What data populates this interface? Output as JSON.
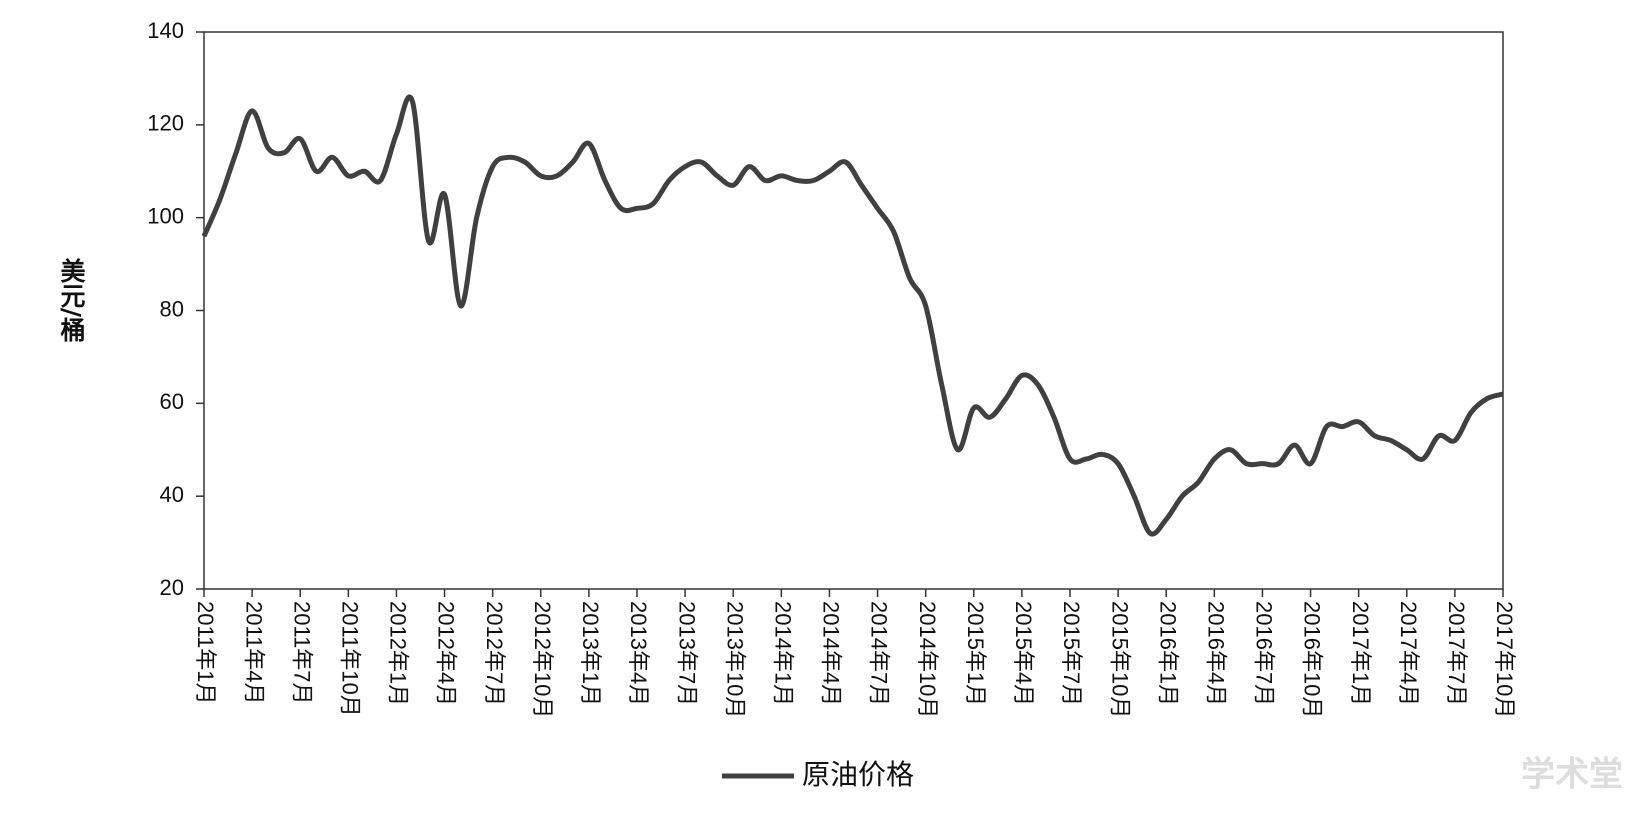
{
  "chart_data": {
    "type": "line",
    "y_label": "美元/桶",
    "categories": [
      "2011年1月",
      null,
      null,
      "2011年4月",
      null,
      null,
      "2011年7月",
      null,
      null,
      "2011年10月",
      null,
      null,
      "2012年1月",
      null,
      null,
      "2012年4月",
      null,
      null,
      "2012年7月",
      null,
      null,
      "2012年10月",
      null,
      null,
      "2013年1月",
      null,
      null,
      "2013年4月",
      null,
      null,
      "2013年7月",
      null,
      null,
      "2013年10月",
      null,
      null,
      "2014年1月",
      null,
      null,
      "2014年4月",
      null,
      null,
      "2014年7月",
      null,
      null,
      "2014年10月",
      null,
      null,
      "2015年1月",
      null,
      null,
      "2015年4月",
      null,
      null,
      "2015年7月",
      null,
      null,
      "2015年10月",
      null,
      null,
      "2016年1月",
      null,
      null,
      "2016年4月",
      null,
      null,
      "2016年7月",
      null,
      null,
      "2016年10月",
      null,
      null,
      "2017年1月",
      null,
      null,
      "2017年4月",
      null,
      null,
      "2017年7月",
      null,
      null,
      "2017年10月"
    ],
    "series": [
      {
        "name": "原油价格",
        "color": "#404040",
        "values": [
          96,
          104,
          114,
          123,
          115,
          114,
          117,
          110,
          113,
          109,
          110,
          108,
          118,
          125,
          95,
          105,
          81,
          100,
          111,
          113,
          112,
          109,
          109,
          112,
          116,
          108,
          102,
          102,
          103,
          108,
          111,
          112,
          109,
          107,
          111,
          108,
          109,
          108,
          108,
          110,
          112,
          107,
          102,
          97,
          87,
          81,
          64,
          50,
          59,
          57,
          61,
          66,
          64,
          57,
          48,
          48,
          49,
          47,
          40,
          32,
          35,
          40,
          43,
          48,
          50,
          47,
          47,
          47,
          51,
          47,
          55,
          55,
          56,
          53,
          52,
          50,
          48,
          53,
          52,
          58,
          61,
          62
        ]
      }
    ],
    "ylim": [
      20,
      140
    ],
    "yticks": [
      20,
      40,
      60,
      80,
      100,
      120,
      140
    ],
    "legend": "bottom",
    "watermark": "学术堂"
  }
}
